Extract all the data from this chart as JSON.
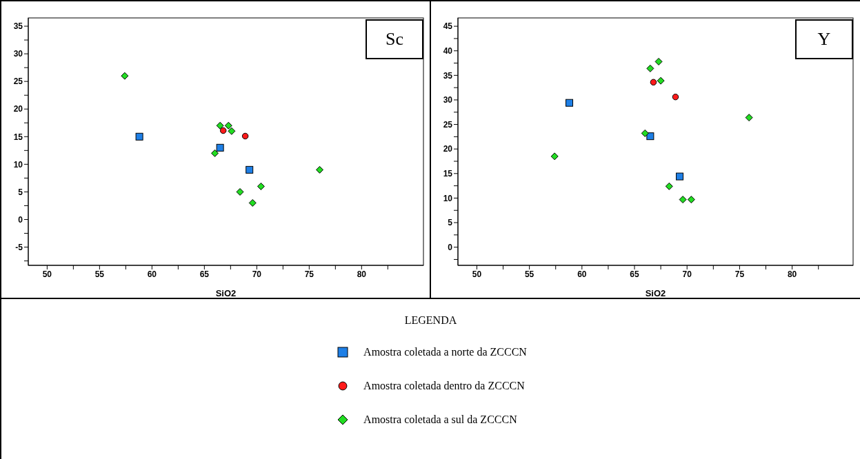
{
  "chart_data": [
    {
      "type": "scatter",
      "annotations": [
        "Sc"
      ],
      "xlabel": "SiO2",
      "xlim": [
        48.2,
        85.9
      ],
      "ylim": [
        -8.3,
        36.5
      ],
      "xticks": [
        50,
        {
          "value": 52.5,
          "label": null
        },
        55,
        {
          "value": 57.5,
          "label": null
        },
        60,
        {
          "value": 62.5,
          "label": null
        },
        65,
        {
          "value": 67.5,
          "label": null
        },
        70,
        {
          "value": 72.5,
          "label": null
        },
        75,
        {
          "value": 77.5,
          "label": null
        },
        80,
        {
          "value": 82.5,
          "label": null
        }
      ],
      "yticks": [
        {
          "value": -7.5,
          "label": null
        },
        -5,
        {
          "value": -2.5,
          "label": null
        },
        0,
        {
          "value": 2.5,
          "label": null
        },
        5,
        {
          "value": 7.5,
          "label": null
        },
        10,
        {
          "value": 12.5,
          "label": null
        },
        15,
        {
          "value": 17.5,
          "label": null
        },
        20,
        {
          "value": 22.5,
          "label": null
        },
        25,
        {
          "value": 27.5,
          "label": null
        },
        30,
        {
          "value": 32.5,
          "label": null
        },
        35
      ],
      "legend": "bottom",
      "legend_title": "LEGENDA",
      "series": [
        {
          "name": "Amostra coletada a norte da ZCCCN",
          "color": "#1e7fe6",
          "marker": "square",
          "x": [
            58.8,
            66.5,
            69.3
          ],
          "values": [
            15,
            13,
            9
          ]
        },
        {
          "name": "Amostra coletada dentro da ZCCCN",
          "color": "#ff1a1a",
          "marker": "circle",
          "x": [
            66.8,
            68.9
          ],
          "values": [
            16.1,
            15.1
          ]
        },
        {
          "name": "Amostra coletada a sul da ZCCCN",
          "color": "#22dd22",
          "marker": "diamond",
          "x": [
            57.4,
            66.5,
            67.3,
            67.6,
            66.0,
            68.4,
            69.6,
            70.4,
            76.0
          ],
          "values": [
            26,
            17,
            17,
            16,
            12,
            5,
            3,
            6,
            9
          ]
        }
      ]
    },
    {
      "type": "scatter",
      "annotations": [
        "Y"
      ],
      "xlabel": "SiO2",
      "xlim": [
        48.2,
        85.8
      ],
      "ylim": [
        -3.7,
        46.7
      ],
      "xticks": [
        50,
        {
          "value": 52.5,
          "label": null
        },
        55,
        {
          "value": 57.5,
          "label": null
        },
        60,
        {
          "value": 62.5,
          "label": null
        },
        65,
        {
          "value": 67.5,
          "label": null
        },
        70,
        {
          "value": 72.5,
          "label": null
        },
        75,
        {
          "value": 77.5,
          "label": null
        },
        80,
        {
          "value": 82.5,
          "label": null
        }
      ],
      "yticks": [
        {
          "value": -2.5,
          "label": null
        },
        0,
        {
          "value": 2.5,
          "label": null
        },
        5,
        {
          "value": 7.5,
          "label": null
        },
        10,
        {
          "value": 12.5,
          "label": null
        },
        15,
        {
          "value": 17.5,
          "label": null
        },
        20,
        {
          "value": 22.5,
          "label": null
        },
        25,
        {
          "value": 27.5,
          "label": null
        },
        30,
        {
          "value": 32.5,
          "label": null
        },
        35,
        {
          "value": 37.5,
          "label": null
        },
        40,
        {
          "value": 42.5,
          "label": null
        },
        45
      ],
      "series": [
        {
          "color": "#1e7fe6",
          "marker": "square",
          "x": [
            58.8,
            66.5,
            69.3
          ],
          "values": [
            29.4,
            22.6,
            14.4
          ]
        },
        {
          "color": "#ff1a1a",
          "marker": "circle",
          "x": [
            66.8,
            68.9
          ],
          "values": [
            33.6,
            30.6
          ]
        },
        {
          "color": "#22dd22",
          "marker": "diamond",
          "x": [
            57.4,
            66.5,
            67.3,
            67.5,
            66.0,
            68.3,
            69.6,
            70.4,
            75.9
          ],
          "values": [
            18.5,
            36.4,
            37.8,
            33.9,
            23.2,
            12.4,
            9.7,
            9.7,
            26.4
          ]
        }
      ]
    }
  ]
}
